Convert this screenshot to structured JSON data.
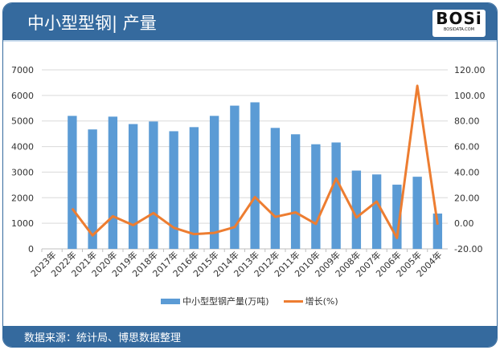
{
  "header": {
    "title": "中小型型钢| 产量",
    "logo_text": "BOSi",
    "logo_sub": "BOSIDATA.COM"
  },
  "footer": {
    "source": "数据来源：统计局、博思数据整理"
  },
  "chart_data": {
    "type": "bar+line",
    "categories": [
      "2023年",
      "2022年",
      "2021年",
      "2020年",
      "2019年",
      "2018年",
      "2017年",
      "2016年",
      "2015年",
      "2014年",
      "2013年",
      "2012年",
      "2011年",
      "2010年",
      "2009年",
      "2008年",
      "2007年",
      "2006年",
      "2005年",
      "2004年"
    ],
    "series": [
      {
        "name": "中小型型钢产量(万吨)",
        "type": "bar",
        "axis": "left",
        "color": "#5b9bd5",
        "values": [
          null,
          5200,
          4670,
          5170,
          4880,
          4980,
          4600,
          4760,
          5200,
          5600,
          5730,
          4730,
          4480,
          4090,
          4160,
          3060,
          2910,
          2510,
          2820,
          1380
        ]
      },
      {
        "name": "增长(%)",
        "type": "line",
        "axis": "right",
        "color": "#ed7d31",
        "values": [
          null,
          11.5,
          -9.5,
          5.5,
          -1.5,
          8,
          -3.5,
          -8.5,
          -7.5,
          -3,
          20.5,
          5,
          8.5,
          -0.5,
          35,
          4.5,
          17,
          -11.5,
          107.5,
          -1
        ]
      }
    ],
    "yleft": {
      "min": 0,
      "max": 7000,
      "ticks": [
        "0",
        "1000",
        "2000",
        "3000",
        "4000",
        "5000",
        "6000",
        "7000"
      ]
    },
    "yright": {
      "min": -20,
      "max": 120,
      "ticks": [
        "-20.00",
        "0.00",
        "20.00",
        "40.00",
        "60.00",
        "80.00",
        "100.00",
        "120.00"
      ]
    },
    "grid": true,
    "legend": "bottom"
  }
}
